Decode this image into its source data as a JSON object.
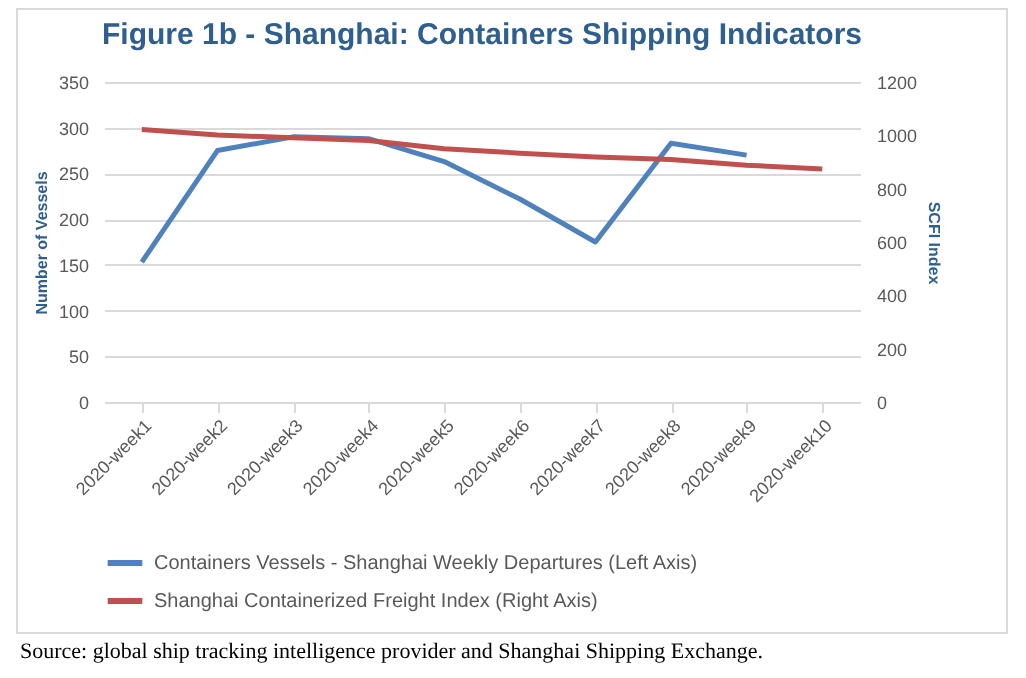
{
  "chart_data": {
    "type": "line",
    "title": "Figure 1b - Shanghai: Containers Shipping Indicators",
    "categories": [
      "2020-week1",
      "2020-week2",
      "2020-week3",
      "2020-week4",
      "2020-week5",
      "2020-week6",
      "2020-week7",
      "2020-week8",
      "2020-week9",
      "2020-week10"
    ],
    "series": [
      {
        "name": "Containers Vessels - Shanghai Weekly Departures (Left Axis)",
        "color": "#4f81bd",
        "values": [
          153,
          275,
          290,
          288,
          263,
          222,
          175,
          283,
          270,
          null
        ]
      },
      {
        "name": "Shanghai Containerized Freight Index (Right Axis)",
        "color": "#c0504d",
        "axis": "y2",
        "values": [
          1022,
          1001,
          991,
          981,
          950,
          933,
          919,
          909,
          888,
          874
        ]
      }
    ],
    "ylabel": "Number of Vessels",
    "y2label": "SCFI Index",
    "ylim": [
      0,
      350
    ],
    "yticks": [
      0,
      50,
      100,
      150,
      200,
      250,
      300,
      350
    ],
    "y2lim": [
      0,
      1200
    ],
    "y2ticks": [
      0,
      200,
      400,
      600,
      800,
      1000,
      1200
    ],
    "grid": "y",
    "legend": "bottom",
    "marker": "none",
    "annotations": [
      "Source: global ship tracking intelligence provider and Shanghai Shipping Exchange."
    ]
  }
}
